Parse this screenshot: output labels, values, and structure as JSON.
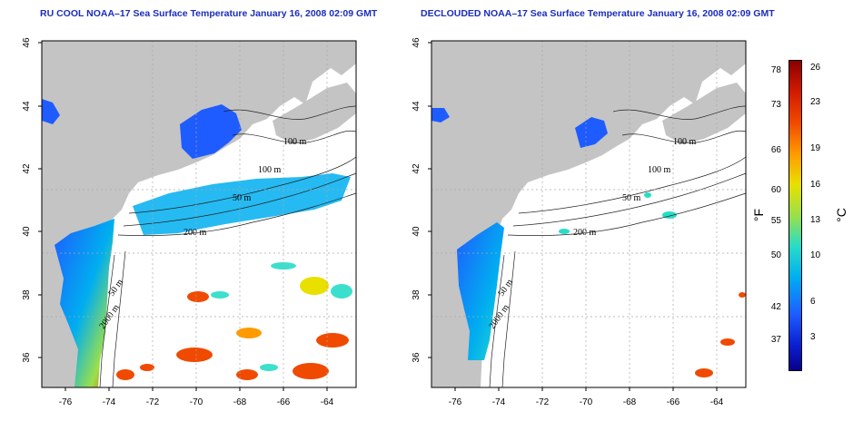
{
  "maps": [
    {
      "title": "RU COOL NOAA–17 Sea Surface Temperature January 16, 2008 02:09 GMT",
      "contour_labels": [
        "100 m",
        "100 m",
        "50 m",
        "200 m",
        "50 m",
        "2000 m"
      ]
    },
    {
      "title": "DECLOUDED NOAA–17 Sea Surface Temperature January 16, 2008 02:09 GMT",
      "contour_labels": [
        "100 m",
        "100 m",
        "50 m",
        "200 m",
        "50 m",
        "2000 m"
      ]
    }
  ],
  "axes": {
    "lon_ticks": [
      "-76",
      "-74",
      "-72",
      "-70",
      "-68",
      "-66",
      "-64"
    ],
    "lat_ticks": [
      "46",
      "44",
      "42",
      "40",
      "38",
      "36"
    ],
    "lon_range": [
      -77.2,
      -63.0
    ],
    "lat_range": [
      35.0,
      46.0
    ],
    "grid": "dashed"
  },
  "colorbar": {
    "fahrenheit_ticks": [
      "78",
      "73",
      "66",
      "60",
      "55",
      "50",
      "42",
      "37"
    ],
    "celsius_ticks": [
      "26",
      "23",
      "19",
      "16",
      "13",
      "10",
      "6",
      "3"
    ],
    "unit_f": "°F",
    "unit_c": "°C",
    "range_c": [
      -1,
      27
    ]
  },
  "colors": {
    "land": "#c4c4c4",
    "title": "#1a2dbd",
    "cold": "#0a1ed0",
    "warm": "#8a0000"
  }
}
